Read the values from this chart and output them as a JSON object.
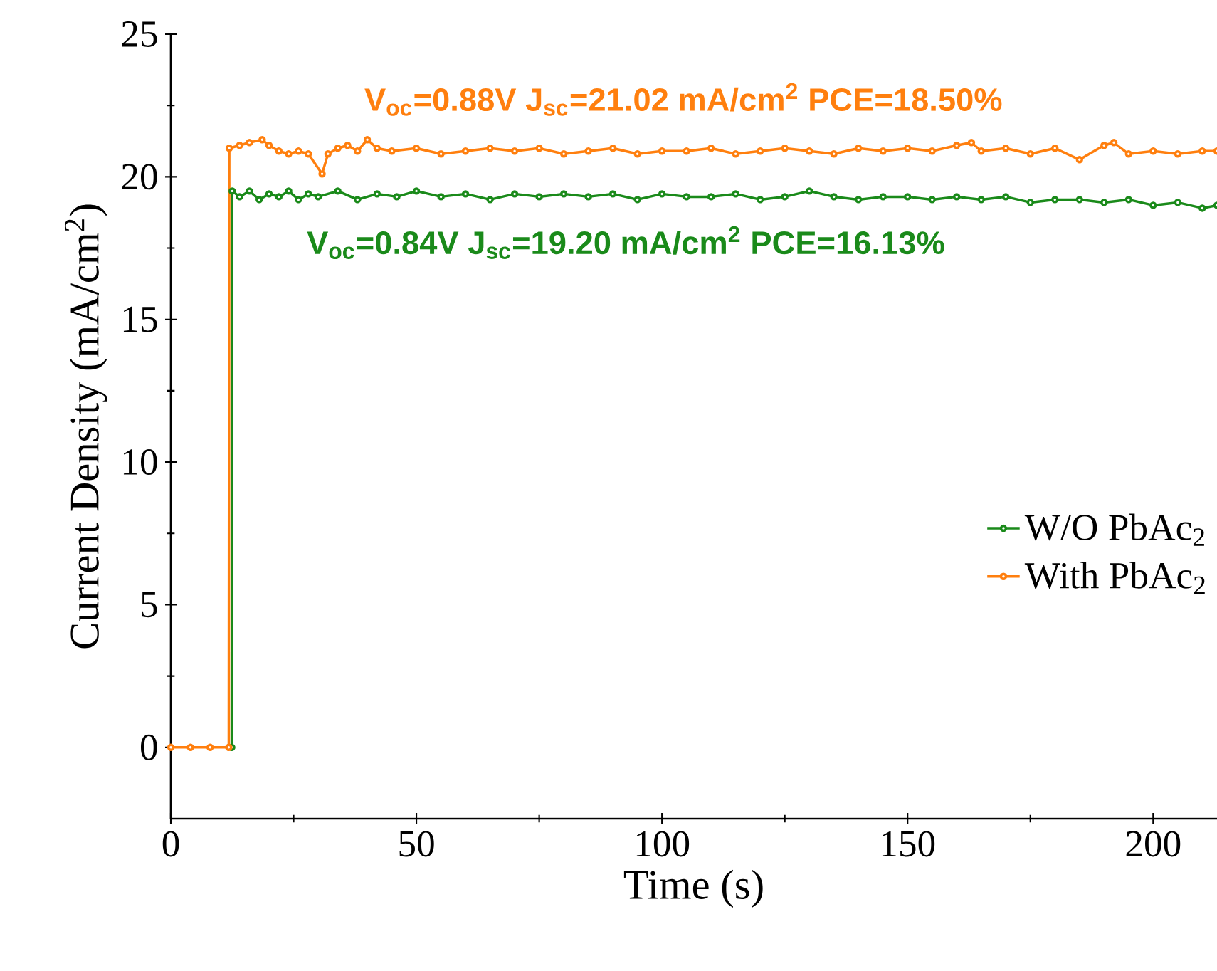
{
  "chart_data": {
    "type": "line",
    "xlabel": "Time (s)",
    "ylabel": "Current Density (mA/cm$^{2}$)",
    "xlim": [
      0,
      213
    ],
    "ylim": [
      -2.5,
      25
    ],
    "xticks": [
      0,
      50,
      100,
      150,
      200
    ],
    "yticks": [
      0,
      5,
      10,
      15,
      20,
      25
    ],
    "series": [
      {
        "name": "W/O PbAc$_{2}$",
        "color": "#1a8a1a",
        "x": [
          12.4,
          12.5,
          14,
          16,
          18,
          20,
          22,
          24,
          26,
          28,
          30,
          34,
          38,
          42,
          46,
          50,
          55,
          60,
          65,
          70,
          75,
          80,
          85,
          90,
          95,
          100,
          105,
          110,
          115,
          120,
          125,
          130,
          135,
          140,
          145,
          150,
          155,
          160,
          165,
          170,
          175,
          180,
          185,
          190,
          195,
          200,
          205,
          210,
          213
        ],
        "values": [
          0,
          19.5,
          19.3,
          19.5,
          19.2,
          19.4,
          19.3,
          19.5,
          19.2,
          19.4,
          19.3,
          19.5,
          19.2,
          19.4,
          19.3,
          19.5,
          19.3,
          19.4,
          19.2,
          19.4,
          19.3,
          19.4,
          19.3,
          19.4,
          19.2,
          19.4,
          19.3,
          19.3,
          19.4,
          19.2,
          19.3,
          19.5,
          19.3,
          19.2,
          19.3,
          19.3,
          19.2,
          19.3,
          19.2,
          19.3,
          19.1,
          19.2,
          19.2,
          19.1,
          19.2,
          19.0,
          19.1,
          18.9,
          19.0
        ]
      },
      {
        "name": "With PbAc$_{2}$",
        "color": "#ff7f0e",
        "x": [
          0,
          4,
          8,
          11.8,
          11.9,
          14,
          16,
          18.6,
          20,
          22,
          24,
          26,
          28,
          30.8,
          32,
          34,
          36,
          38,
          40,
          42,
          45,
          50,
          55,
          60,
          65,
          70,
          75,
          80,
          85,
          90,
          95,
          100,
          105,
          110,
          115,
          120,
          125,
          130,
          135,
          140,
          145,
          150,
          155,
          160,
          163,
          165,
          170,
          175,
          180,
          185,
          190,
          192,
          195,
          200,
          205,
          210,
          213
        ],
        "values": [
          0,
          0,
          0,
          0,
          21.0,
          21.1,
          21.2,
          21.3,
          21.1,
          20.9,
          20.8,
          20.9,
          20.8,
          20.1,
          20.8,
          21.0,
          21.1,
          20.9,
          21.3,
          21.0,
          20.9,
          21.0,
          20.8,
          20.9,
          21.0,
          20.9,
          21.0,
          20.8,
          20.9,
          21.0,
          20.8,
          20.9,
          20.9,
          21.0,
          20.8,
          20.9,
          21.0,
          20.9,
          20.8,
          21.0,
          20.9,
          21.0,
          20.9,
          21.1,
          21.2,
          20.9,
          21.0,
          20.8,
          21.0,
          20.6,
          21.1,
          21.2,
          20.8,
          20.9,
          20.8,
          20.9,
          20.9
        ]
      }
    ],
    "annotations": [
      "V$_{oc}$=0.88V J$_{sc}$=21.02 mA/cm$^{2}$ PCE=18.50%",
      "V$_{oc}$=0.84V J$_{sc}$=19.20 mA/cm$^{2}$ PCE=16.13%"
    ],
    "legend": "bottom right",
    "marker": "circle",
    "line_style": "solid"
  }
}
